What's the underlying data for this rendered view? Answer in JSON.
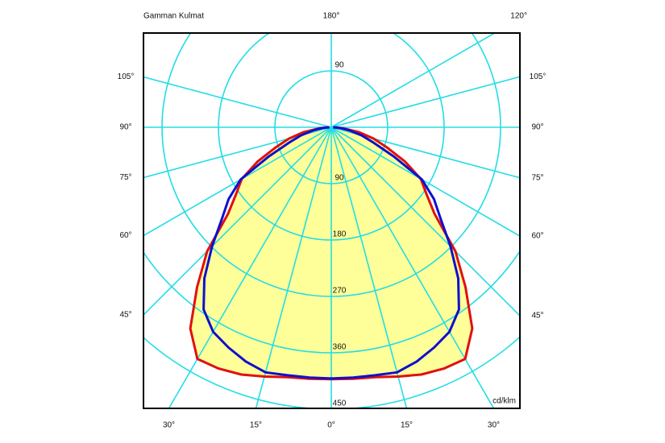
{
  "chart_data": {
    "type": "polar",
    "title": "Gamman Kulmat",
    "unit": "cd/klm",
    "rlim": [
      0,
      450
    ],
    "rticks": [
      90,
      180,
      270,
      360,
      450
    ],
    "angle_ticks": [
      {
        "value": 180,
        "label": "180°"
      },
      {
        "value": 120,
        "label": "120°"
      },
      {
        "value": -105,
        "label": "105°"
      },
      {
        "value": -90,
        "label": "90°"
      },
      {
        "value": -75,
        "label": "75°"
      },
      {
        "value": -60,
        "label": "60°"
      },
      {
        "value": -45,
        "label": "45°"
      },
      {
        "value": 105,
        "label": "105°"
      },
      {
        "value": 90,
        "label": "90°"
      },
      {
        "value": 75,
        "label": "75°"
      },
      {
        "value": 60,
        "label": "60°"
      },
      {
        "value": 45,
        "label": "45°"
      },
      {
        "value": -30,
        "label": "30°"
      },
      {
        "value": -15,
        "label": "15°"
      },
      {
        "value": 0,
        "label": "0°"
      },
      {
        "value": 15,
        "label": "15°"
      },
      {
        "value": 30,
        "label": "30°"
      }
    ],
    "grid_color": "#22dde6",
    "x": [
      -90,
      -85,
      -80,
      -75,
      -70,
      -65,
      -60,
      -55,
      -50,
      -45,
      -40,
      -35,
      -30,
      -25,
      -20,
      -15,
      -10,
      -5,
      0,
      5,
      10,
      15,
      20,
      25,
      30,
      35,
      40,
      45,
      50,
      55,
      60,
      65,
      70,
      75,
      80,
      85,
      90
    ],
    "series": [
      {
        "color": "#e01010",
        "fill": "#ffff99",
        "values": [
          5,
          20,
          45,
          70,
          95,
          130,
          165,
          185,
          215,
          280,
          333,
          392,
          427,
          425,
          420,
          412,
          405,
          403,
          402,
          403,
          405,
          412,
          420,
          425,
          427,
          392,
          333,
          280,
          215,
          185,
          165,
          130,
          95,
          70,
          45,
          20,
          5
        ]
      },
      {
        "color": "#1010cc",
        "values": [
          3,
          15,
          30,
          50,
          72,
          110,
          167,
          200,
          228,
          269,
          315,
          355,
          377,
          388,
          398,
          405,
          402,
          401,
          401,
          401,
          402,
          405,
          398,
          388,
          377,
          355,
          315,
          269,
          228,
          200,
          167,
          110,
          72,
          50,
          30,
          15,
          3
        ]
      }
    ]
  }
}
